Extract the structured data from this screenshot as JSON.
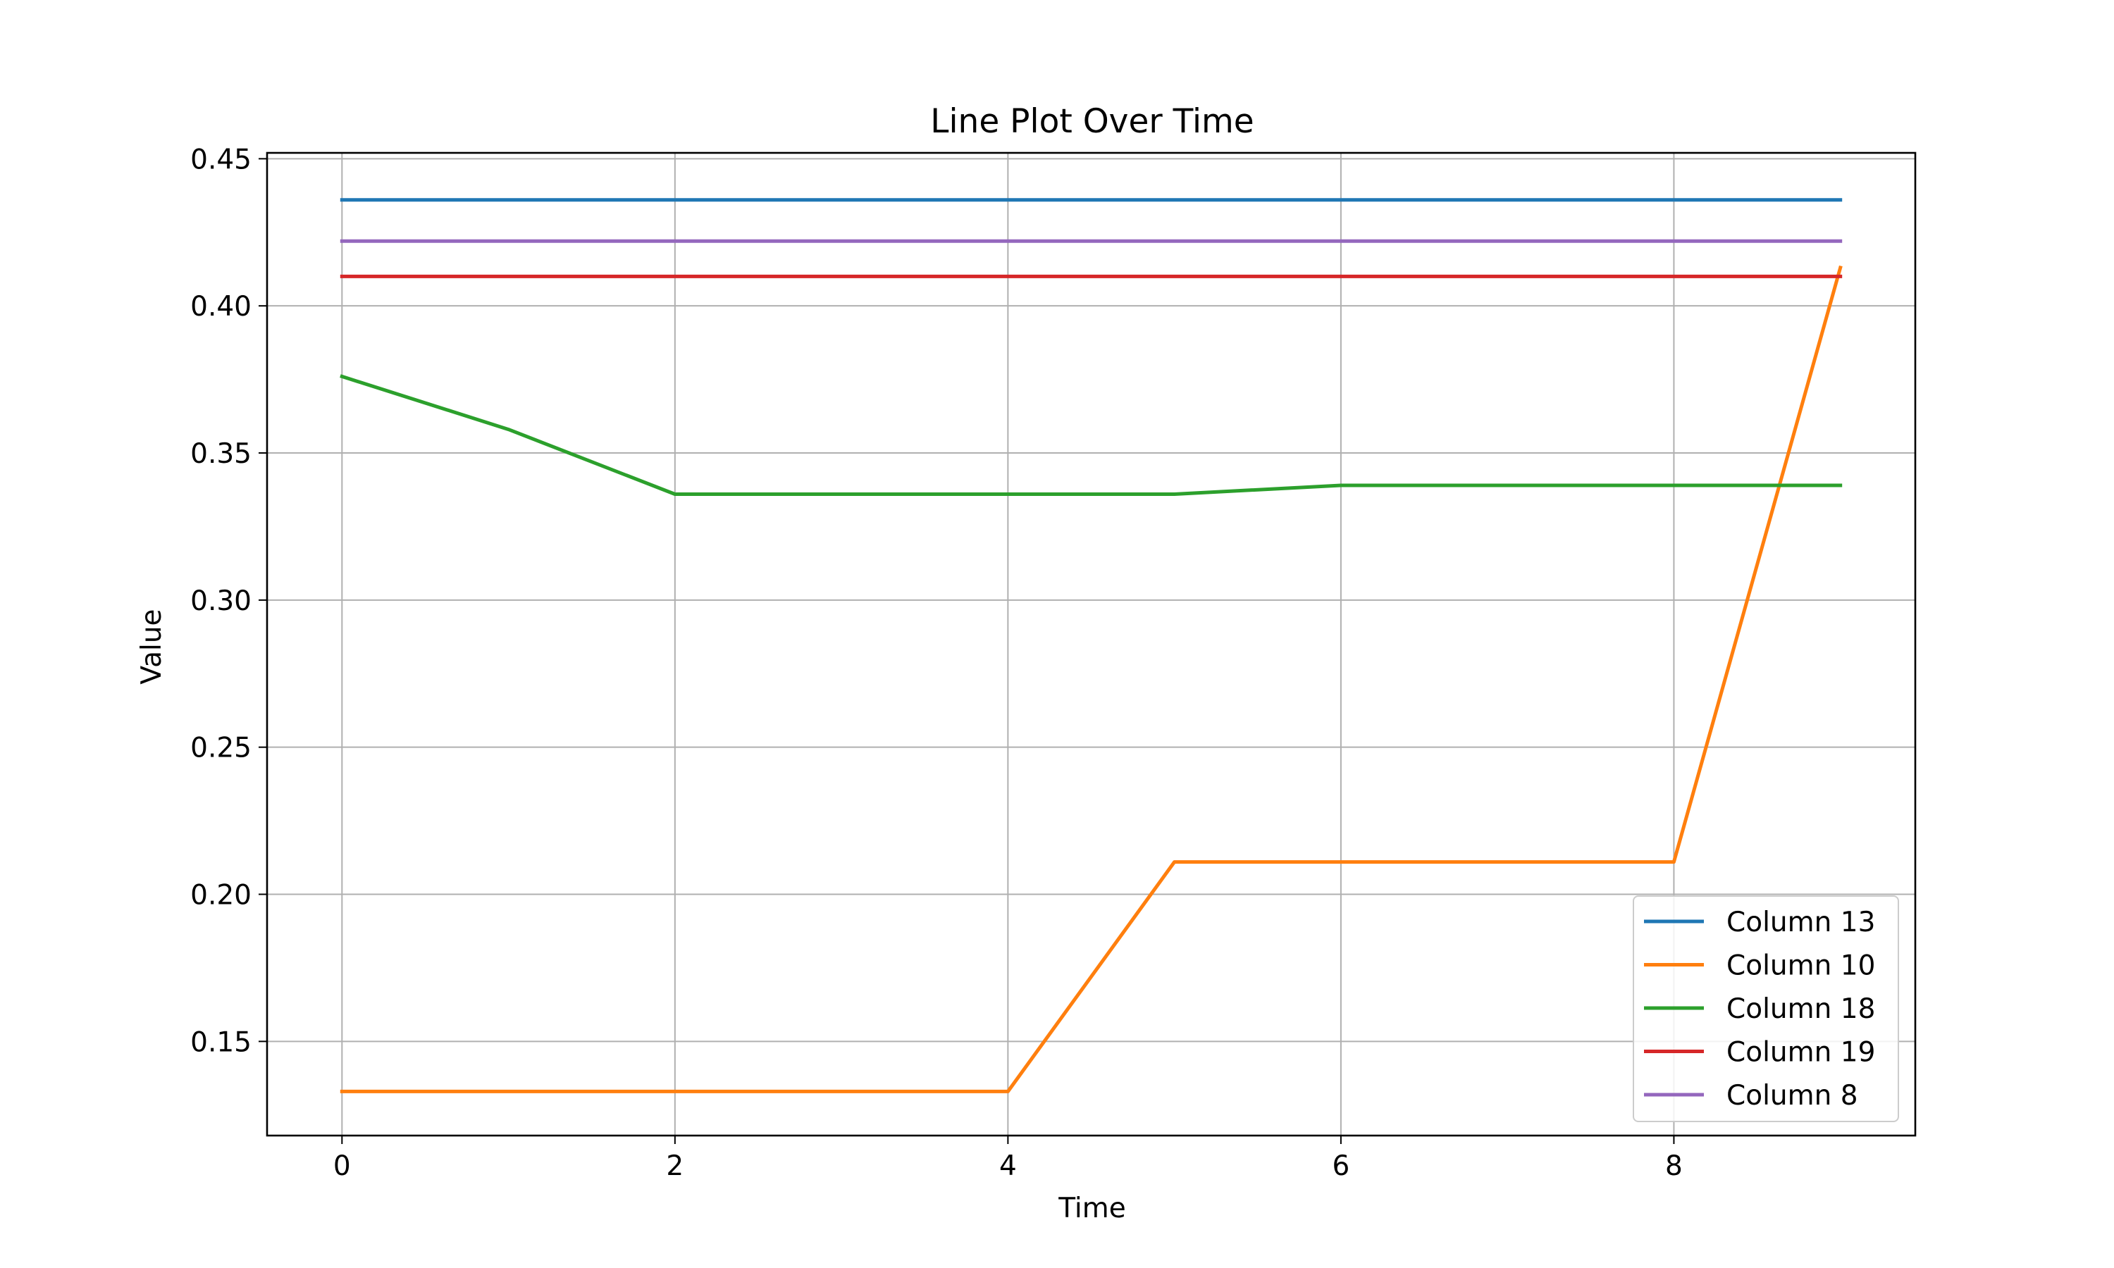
{
  "chart_data": {
    "type": "line",
    "title": "Line Plot Over Time",
    "xlabel": "Time",
    "ylabel": "Value",
    "x": [
      0,
      1,
      2,
      3,
      4,
      5,
      6,
      7,
      8,
      9
    ],
    "xlim": [
      -0.45,
      9.45
    ],
    "ylim": [
      0.118,
      0.452
    ],
    "xticks": [
      0,
      2,
      4,
      6,
      8
    ],
    "yticks": [
      0.15,
      0.2,
      0.25,
      0.3,
      0.35,
      0.4,
      0.45
    ],
    "xtick_labels": [
      "0",
      "2",
      "4",
      "6",
      "8"
    ],
    "ytick_labels": [
      "0.15",
      "0.20",
      "0.25",
      "0.30",
      "0.35",
      "0.40",
      "0.45"
    ],
    "grid": true,
    "legend_position": "lower-right",
    "series": [
      {
        "name": "Column 13",
        "color": "#1f77b4",
        "values": [
          0.436,
          0.436,
          0.436,
          0.436,
          0.436,
          0.436,
          0.436,
          0.436,
          0.436,
          0.436
        ]
      },
      {
        "name": "Column 10",
        "color": "#ff7f0e",
        "values": [
          0.133,
          0.133,
          0.133,
          0.133,
          0.133,
          0.211,
          0.211,
          0.211,
          0.211,
          0.413
        ]
      },
      {
        "name": "Column 18",
        "color": "#2ca02c",
        "values": [
          0.376,
          0.358,
          0.336,
          0.336,
          0.336,
          0.336,
          0.339,
          0.339,
          0.339,
          0.339
        ]
      },
      {
        "name": "Column 19",
        "color": "#d62728",
        "values": [
          0.41,
          0.41,
          0.41,
          0.41,
          0.41,
          0.41,
          0.41,
          0.41,
          0.41,
          0.41
        ]
      },
      {
        "name": "Column 8",
        "color": "#9467bd",
        "values": [
          0.422,
          0.422,
          0.422,
          0.422,
          0.422,
          0.422,
          0.422,
          0.422,
          0.422,
          0.422
        ]
      }
    ]
  }
}
